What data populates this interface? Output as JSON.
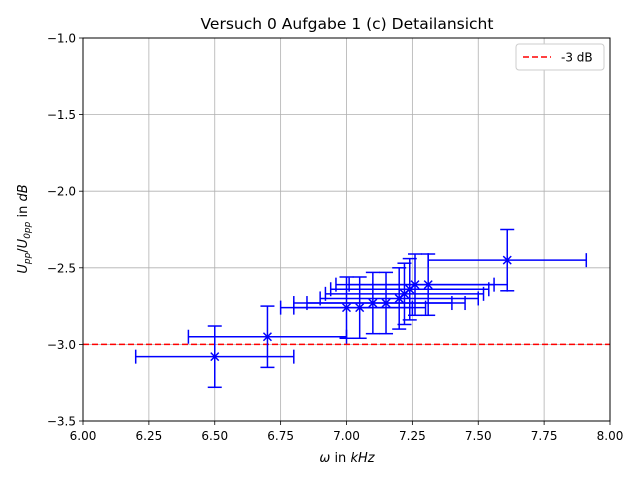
{
  "chart_data": {
    "type": "scatter",
    "title": "Versuch 0 Aufgabe 1 (c) Detailansicht",
    "xlabel": "ω in kHz",
    "ylabel": "U_pp/U_0pp in dB",
    "xlim": [
      6.0,
      8.0
    ],
    "ylim": [
      -3.5,
      -1.0
    ],
    "x_ticks": [
      6.0,
      6.25,
      6.5,
      6.75,
      7.0,
      7.25,
      7.5,
      7.75,
      8.0
    ],
    "y_ticks": [
      -3.5,
      -3.0,
      -2.5,
      -2.0,
      -1.5,
      -1.0
    ],
    "x_tick_labels": [
      "6.00",
      "6.25",
      "6.50",
      "6.75",
      "7.00",
      "7.25",
      "7.50",
      "7.75",
      "8.00"
    ],
    "y_tick_labels": [
      "−3.5",
      "−3.0",
      "−2.5",
      "−2.0",
      "−1.5",
      "−1.0"
    ],
    "grid": true,
    "legend_position": "top-right",
    "series": [
      {
        "color": "#0000ff",
        "marker": "x",
        "points": [
          {
            "x": 6.5,
            "y": -3.08,
            "xerr": 0.3,
            "yerr": 0.2
          },
          {
            "x": 6.7,
            "y": -2.95,
            "xerr": 0.3,
            "yerr": 0.2
          },
          {
            "x": 7.0,
            "y": -2.76,
            "xerr": 0.25,
            "yerr": 0.2
          },
          {
            "x": 7.05,
            "y": -2.76,
            "xerr": 0.25,
            "yerr": 0.2
          },
          {
            "x": 7.1,
            "y": -2.73,
            "xerr": 0.3,
            "yerr": 0.2
          },
          {
            "x": 7.15,
            "y": -2.73,
            "xerr": 0.3,
            "yerr": 0.2
          },
          {
            "x": 7.2,
            "y": -2.7,
            "xerr": 0.3,
            "yerr": 0.2
          },
          {
            "x": 7.22,
            "y": -2.67,
            "xerr": 0.3,
            "yerr": 0.2
          },
          {
            "x": 7.24,
            "y": -2.64,
            "xerr": 0.3,
            "yerr": 0.2
          },
          {
            "x": 7.26,
            "y": -2.61,
            "xerr": 0.3,
            "yerr": 0.2
          },
          {
            "x": 7.31,
            "y": -2.61,
            "xerr": 0.3,
            "yerr": 0.2
          },
          {
            "x": 7.61,
            "y": -2.45,
            "xerr": 0.3,
            "yerr": 0.2
          }
        ]
      }
    ],
    "reference_lines": [
      {
        "name": "-3 dB",
        "y": -3.0,
        "color": "#ff0000",
        "style": "dashed"
      }
    ]
  }
}
